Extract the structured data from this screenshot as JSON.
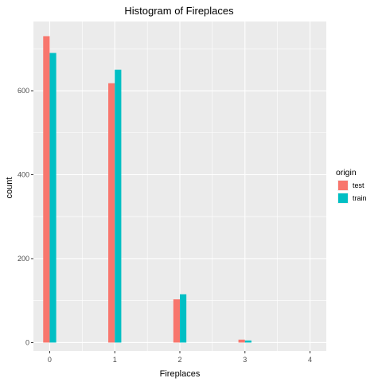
{
  "chart_data": {
    "type": "bar",
    "title": "Histogram of Fireplaces",
    "xlabel": "Fireplaces",
    "ylabel": "count",
    "categories": [
      "0",
      "1",
      "2",
      "3",
      "4"
    ],
    "x": [
      0,
      1,
      2,
      3,
      4
    ],
    "series": [
      {
        "name": "test",
        "color": "#F8766D",
        "values": [
          730,
          618,
          103,
          7,
          0
        ]
      },
      {
        "name": "train",
        "color": "#00BFC4",
        "values": [
          690,
          650,
          115,
          5,
          0
        ]
      }
    ],
    "xlim": [
      -0.25,
      4.25
    ],
    "ylim": [
      -20,
      765
    ],
    "yticks": [
      0,
      200,
      400,
      600
    ],
    "xticks": [
      0,
      1,
      2,
      3,
      4
    ],
    "grid": true,
    "legend": {
      "title": "origin",
      "position": "right",
      "entries": [
        "test",
        "train"
      ]
    },
    "colors": {
      "panel_background": "#EBEBEB",
      "grid": "#FFFFFF"
    }
  }
}
